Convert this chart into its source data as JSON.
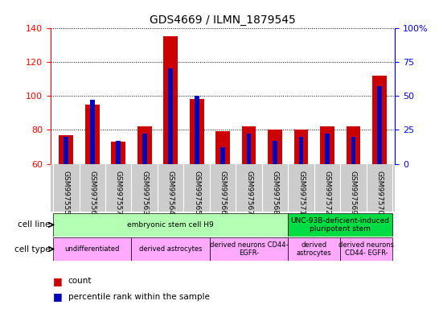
{
  "title": "GDS4669 / ILMN_1879545",
  "samples": [
    "GSM997555",
    "GSM997556",
    "GSM997557",
    "GSM997563",
    "GSM997564",
    "GSM997565",
    "GSM997566",
    "GSM997567",
    "GSM997568",
    "GSM997571",
    "GSM997572",
    "GSM997569",
    "GSM997570"
  ],
  "counts": [
    77,
    95,
    73,
    82,
    135,
    98,
    79,
    82,
    80,
    80,
    82,
    82,
    112
  ],
  "percentile_ranks": [
    20,
    47,
    17,
    22,
    70,
    50,
    12,
    22,
    17,
    20,
    22,
    20,
    57
  ],
  "ylim_left": [
    60,
    140
  ],
  "ylim_right": [
    0,
    100
  ],
  "yticks_left": [
    60,
    80,
    100,
    120,
    140
  ],
  "yticks_right": [
    0,
    25,
    50,
    75,
    100
  ],
  "yticklabels_right": [
    "0",
    "25",
    "50",
    "75",
    "100%"
  ],
  "bar_color": "#cc0000",
  "percentile_color": "#0000bb",
  "grid_color": "#000000",
  "cell_line_groups": [
    {
      "label": "embryonic stem cell H9",
      "start": 0,
      "end": 9,
      "color": "#b3ffb3"
    },
    {
      "label": "UNC-93B-deficient-induced\npluripotent stem",
      "start": 9,
      "end": 13,
      "color": "#00dd44"
    }
  ],
  "cell_type_groups": [
    {
      "label": "undifferentiated",
      "start": 0,
      "end": 3,
      "color": "#ffaaff"
    },
    {
      "label": "derived astrocytes",
      "start": 3,
      "end": 6,
      "color": "#ffaaff"
    },
    {
      "label": "derived neurons CD44-\nEGFR-",
      "start": 6,
      "end": 9,
      "color": "#ffaaff"
    },
    {
      "label": "derived\nastrocytes",
      "start": 9,
      "end": 11,
      "color": "#ffaaff"
    },
    {
      "label": "derived neurons\nCD44- EGFR-",
      "start": 11,
      "end": 13,
      "color": "#ffaaff"
    }
  ],
  "legend_count_color": "#cc0000",
  "legend_percentile_color": "#0000bb",
  "bar_width": 0.55,
  "blue_bar_width": 0.18,
  "base_value": 60,
  "tick_bg_color": "#cccccc"
}
